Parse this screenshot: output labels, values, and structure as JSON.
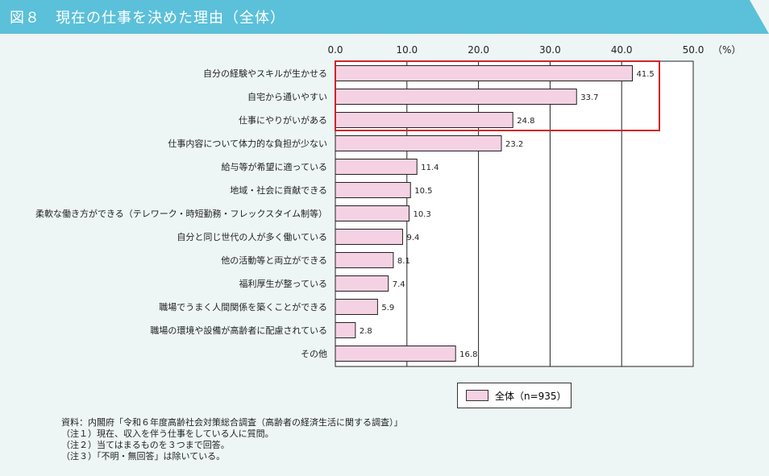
{
  "title": "図８　現在の仕事を決めた理由（全体）",
  "chart_data": {
    "type": "bar",
    "orientation": "horizontal",
    "categories": [
      "自分の経験やスキルが生かせる",
      "自宅から通いやすい",
      "仕事にやりがいがある",
      "仕事内容について体力的な負担が少ない",
      "給与等が希望に適っている",
      "地域・社会に貢献できる",
      "柔軟な働き方ができる（テレワーク・時短勤務・フレックスタイム制等）",
      "自分と同じ世代の人が多く働いている",
      "他の活動等と両立ができる",
      "福利厚生が整っている",
      "職場でうまく人間関係を築くことができる",
      "職場の環境や設備が高齢者に配慮されている",
      "その他"
    ],
    "series": [
      {
        "name": "全体（n=935）",
        "values": [
          41.5,
          33.7,
          24.8,
          23.2,
          11.4,
          10.5,
          10.3,
          9.4,
          8.1,
          7.4,
          5.9,
          2.8,
          16.8
        ]
      }
    ],
    "xlim": [
      0,
      50
    ],
    "tick_labels": [
      "0.0",
      "10.0",
      "20.0",
      "30.0",
      "40.0",
      "50.0"
    ],
    "unit": "（%）",
    "grid": true,
    "legend": "bottom",
    "highlight": "top 3 items boxed in red",
    "colors": {
      "bar": "#f5d2e3",
      "highlight": "#d0242b",
      "header": "#5bc0d9"
    }
  },
  "notes": [
    "資料：内閣府「令和６年度高齢社会対策総合調査（高齢者の経済生活に関する調査）」",
    "（注１）現在、収入を伴う仕事をしている人に質問。",
    "（注２）当てはまるものを３つまで回答。",
    "（注３）「不明・無回答」は除いている。"
  ]
}
